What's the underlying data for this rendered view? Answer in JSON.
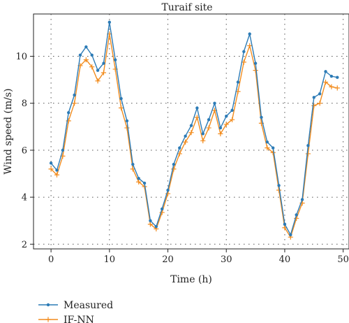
{
  "chart_data": {
    "type": "line",
    "title": "Turaif site",
    "xlabel": "Time (h)",
    "ylabel": "Wind speed (m/s)",
    "xlim": [
      -3,
      51
    ],
    "ylim": [
      1.8,
      11.8
    ],
    "xticks": [
      0,
      10,
      20,
      30,
      40,
      50
    ],
    "yticks": [
      2,
      4,
      6,
      8,
      10
    ],
    "xtick_labels": [
      "0",
      "10",
      "20",
      "30",
      "40",
      "50"
    ],
    "ytick_labels": [
      "2",
      "4",
      "6",
      "8",
      "10"
    ],
    "grid": true,
    "legend_position": "bottom-left, below plot",
    "x": [
      0,
      1,
      2,
      3,
      4,
      5,
      6,
      7,
      8,
      9,
      10,
      11,
      12,
      13,
      14,
      15,
      16,
      17,
      18,
      19,
      20,
      21,
      22,
      23,
      24,
      25,
      26,
      27,
      28,
      29,
      30,
      31,
      32,
      33,
      34,
      35,
      36,
      37,
      38,
      39,
      40,
      41,
      42,
      43,
      44,
      45,
      46,
      47,
      48,
      49
    ],
    "series": [
      {
        "name": "Measured",
        "color": "#2c7bb6",
        "marker": "circle",
        "values": [
          5.45,
          5.15,
          6.0,
          7.6,
          8.35,
          10.05,
          10.4,
          10.05,
          9.4,
          9.7,
          11.45,
          9.85,
          8.2,
          7.25,
          5.4,
          4.8,
          4.6,
          3.0,
          2.75,
          3.5,
          4.3,
          5.4,
          6.1,
          6.6,
          7.05,
          7.8,
          6.7,
          7.3,
          8.0,
          6.95,
          7.45,
          7.7,
          8.9,
          10.2,
          10.95,
          9.7,
          7.4,
          6.35,
          6.1,
          4.5,
          2.85,
          2.4,
          3.25,
          3.9,
          6.2,
          8.25,
          8.4,
          9.35,
          9.15,
          9.1
        ]
      },
      {
        "name": "IF-NN",
        "color": "#f28c1e",
        "marker": "plus",
        "values": [
          5.2,
          4.95,
          5.75,
          7.25,
          8.0,
          9.6,
          9.85,
          9.55,
          8.95,
          9.3,
          10.95,
          9.45,
          7.8,
          6.95,
          5.2,
          4.65,
          4.45,
          2.85,
          2.65,
          3.35,
          4.15,
          5.2,
          5.85,
          6.35,
          6.75,
          7.4,
          6.4,
          6.95,
          7.7,
          6.7,
          7.1,
          7.3,
          8.5,
          9.75,
          10.45,
          9.4,
          7.15,
          6.1,
          5.9,
          4.3,
          2.7,
          2.3,
          3.1,
          3.75,
          5.85,
          7.9,
          8.0,
          8.9,
          8.7,
          8.65
        ]
      }
    ]
  }
}
